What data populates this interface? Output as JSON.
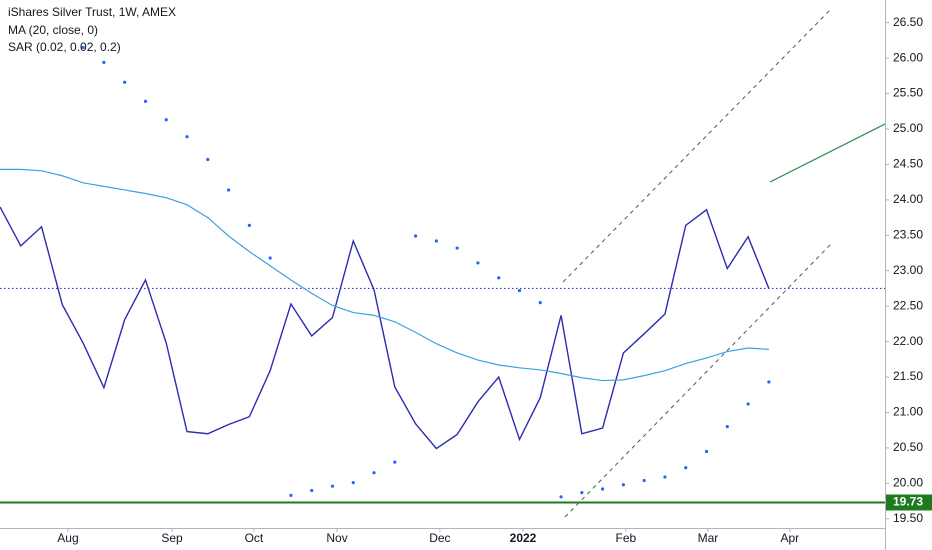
{
  "chart_data": {
    "type": "line",
    "title": "iShares Silver Trust, 1W, AMEX",
    "categories": [
      null,
      null,
      null,
      null,
      null,
      null,
      null,
      null,
      null,
      null,
      null,
      null,
      null,
      null,
      null,
      null,
      null,
      null,
      null,
      null,
      null,
      null,
      null,
      null,
      null,
      null,
      null,
      null,
      null,
      null,
      null,
      null,
      null,
      null,
      null,
      null,
      null,
      null
    ],
    "series": [
      {
        "color": "#2b2bb3",
        "style": "line",
        "values": [
          23.9,
          23.35,
          23.62,
          22.52,
          21.98,
          21.35,
          22.31,
          22.87,
          21.98,
          20.73,
          20.7,
          20.83,
          20.94,
          21.59,
          22.53,
          22.08,
          22.34,
          23.42,
          22.73,
          21.36,
          20.84,
          20.49,
          20.69,
          21.15,
          21.5,
          20.62,
          21.21,
          22.37,
          20.7,
          20.78,
          21.84,
          22.11,
          22.39,
          23.64,
          23.86,
          23.03,
          23.48,
          22.75
        ]
      },
      {
        "name": "MA (20, close, 0)",
        "color": "#3ba3e0",
        "style": "line",
        "values": [
          24.43,
          24.43,
          24.41,
          24.34,
          24.24,
          24.19,
          24.14,
          24.09,
          24.03,
          23.93,
          23.75,
          23.49,
          23.27,
          23.07,
          22.87,
          22.68,
          22.51,
          22.41,
          22.37,
          22.28,
          22.13,
          21.97,
          21.84,
          21.74,
          21.67,
          21.63,
          21.6,
          21.55,
          21.49,
          21.45,
          21.46,
          21.52,
          21.59,
          21.69,
          21.77,
          21.86,
          21.91,
          21.89
        ]
      },
      {
        "name": "SAR (0.02, 0.02, 0.2)",
        "color": "#2962ff",
        "style": "dots",
        "values": [
          null,
          null,
          null,
          null,
          26.15,
          25.94,
          25.66,
          25.39,
          25.13,
          24.89,
          24.57,
          24.14,
          23.64,
          23.18,
          19.83,
          19.9,
          19.96,
          20.01,
          20.15,
          20.3,
          23.49,
          23.42,
          23.32,
          23.11,
          22.9,
          22.72,
          22.55,
          19.81,
          19.87,
          19.92,
          19.98,
          20.04,
          20.09,
          20.22,
          20.45,
          20.8,
          21.12,
          21.43
        ]
      }
    ],
    "hlines": [
      {
        "value": 22.75,
        "color": "#3a3ab8",
        "style": "dotted"
      },
      {
        "value": 19.73,
        "color": "#1f7a1f",
        "style": "solid",
        "labeled": true
      }
    ],
    "xlim": [
      0,
      42.59
    ],
    "xticks": [
      {
        "value": 3.27,
        "label": "Aug"
      },
      {
        "value": 8.28,
        "label": "Sep"
      },
      {
        "value": 12.22,
        "label": "Oct"
      },
      {
        "value": 16.22,
        "label": "Nov"
      },
      {
        "value": 21.17,
        "label": "Dec"
      },
      {
        "value": 25.17,
        "label": "2022"
      },
      {
        "value": 30.12,
        "label": "Feb"
      },
      {
        "value": 34.07,
        "label": "Mar"
      },
      {
        "value": 38.01,
        "label": "Apr"
      }
    ],
    "ylim": [
      19.37,
      26.82
    ],
    "yticks": [
      {
        "value": 19.5,
        "label": "19.50"
      },
      {
        "value": 20,
        "label": "20.00"
      },
      {
        "value": 20.5,
        "label": "20.50"
      },
      {
        "value": 21,
        "label": "21.00"
      },
      {
        "value": 21.5,
        "label": "21.50"
      },
      {
        "value": 22,
        "label": "22.00"
      },
      {
        "value": 22.5,
        "label": "22.50"
      },
      {
        "value": 23,
        "label": "23.00"
      },
      {
        "value": 23.5,
        "label": "23.50"
      },
      {
        "value": 24,
        "label": "24.00"
      },
      {
        "value": 24.5,
        "label": "24.50"
      },
      {
        "value": 25,
        "label": "25.00"
      },
      {
        "value": 25.5,
        "label": "25.50"
      },
      {
        "value": 26,
        "label": "26.00"
      },
      {
        "value": 26.5,
        "label": "26.50"
      }
    ],
    "grid": false
  }
}
